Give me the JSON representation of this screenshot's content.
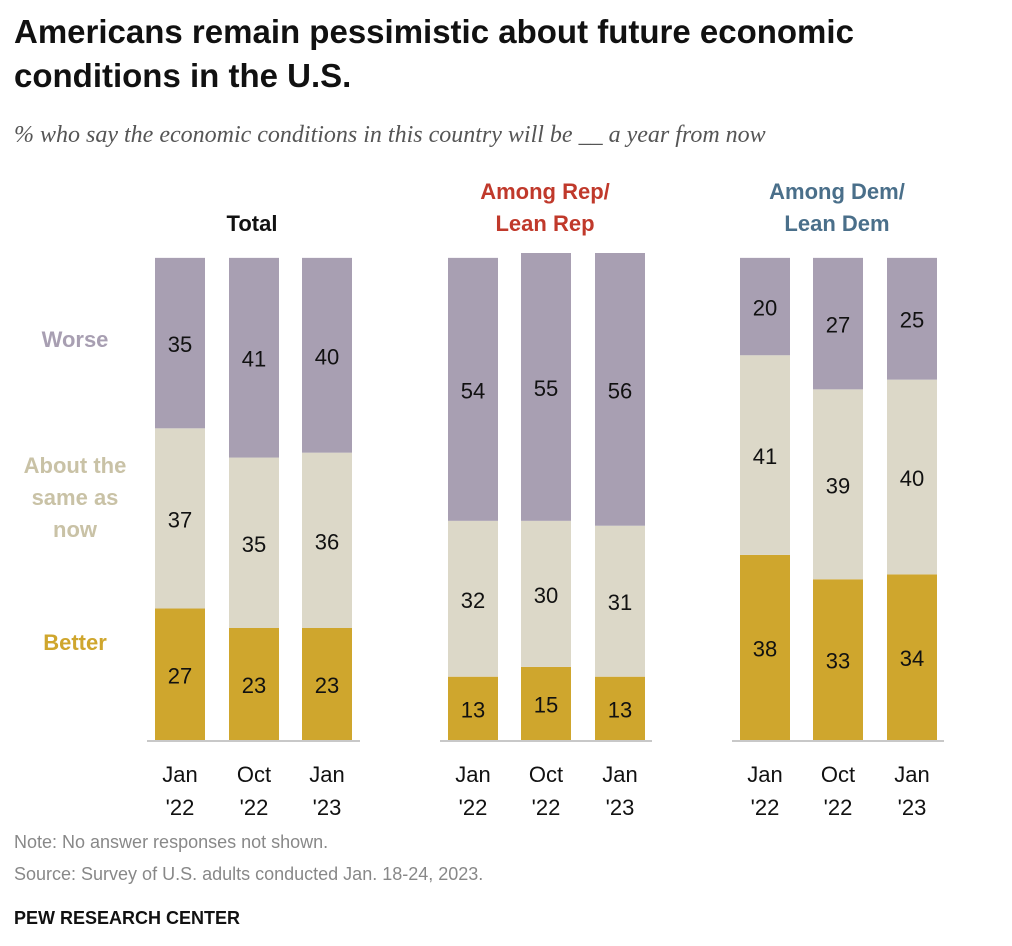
{
  "title": "Americans remain pessimistic about future economic conditions in the U.S.",
  "subtitle": "% who say the economic conditions in this country will be __ a year from now",
  "colors": {
    "Worse": "#a89fb2",
    "About the same as now": "#dcd8c8",
    "Better": "#cfa62d",
    "rep_title": "#c0392b",
    "dem_title": "#4a6f8a",
    "total_title": "#111111",
    "worse_label": "#a89fb2",
    "same_label": "#c9c2a6",
    "better_label": "#cfa62d"
  },
  "chart_data": {
    "type": "bar",
    "stacked": true,
    "category_labels": [
      "Better",
      "About the same as now",
      "Worse"
    ],
    "groups": [
      {
        "title": [
          "Total"
        ],
        "title_color_key": "total_title",
        "bars": [
          {
            "label": [
              "Jan",
              "'22"
            ],
            "Better": 27,
            "About the same as now": 37,
            "Worse": 35
          },
          {
            "label": [
              "Oct",
              "'22"
            ],
            "Better": 23,
            "About the same as now": 35,
            "Worse": 41
          },
          {
            "label": [
              "Jan",
              "'23"
            ],
            "Better": 23,
            "About the same as now": 36,
            "Worse": 40
          }
        ]
      },
      {
        "title": [
          "Among Rep/",
          "Lean Rep"
        ],
        "title_color_key": "rep_title",
        "bars": [
          {
            "label": [
              "Jan",
              "'22"
            ],
            "Better": 13,
            "About the same as now": 32,
            "Worse": 54
          },
          {
            "label": [
              "Oct",
              "'22"
            ],
            "Better": 15,
            "About the same as now": 30,
            "Worse": 55
          },
          {
            "label": [
              "Jan",
              "'23"
            ],
            "Better": 13,
            "About the same as now": 31,
            "Worse": 56
          }
        ]
      },
      {
        "title": [
          "Among Dem/",
          "Lean Dem"
        ],
        "title_color_key": "dem_title",
        "bars": [
          {
            "label": [
              "Jan",
              "'22"
            ],
            "Better": 38,
            "About the same as now": 41,
            "Worse": 20
          },
          {
            "label": [
              "Oct",
              "'22"
            ],
            "Better": 33,
            "About the same as now": 39,
            "Worse": 27
          },
          {
            "label": [
              "Jan",
              "'23"
            ],
            "Better": 34,
            "About the same as now": 40,
            "Worse": 25
          }
        ]
      }
    ],
    "row_labels": {
      "Worse": [
        "Worse"
      ],
      "About the same as now": [
        "About the",
        "same as",
        "now"
      ],
      "Better": [
        "Better"
      ]
    },
    "ylim": [
      0,
      100
    ]
  },
  "note": "Note: No answer responses not shown.",
  "source": "Source: Survey of U.S. adults conducted Jan. 18-24, 2023.",
  "brand": "PEW RESEARCH CENTER"
}
